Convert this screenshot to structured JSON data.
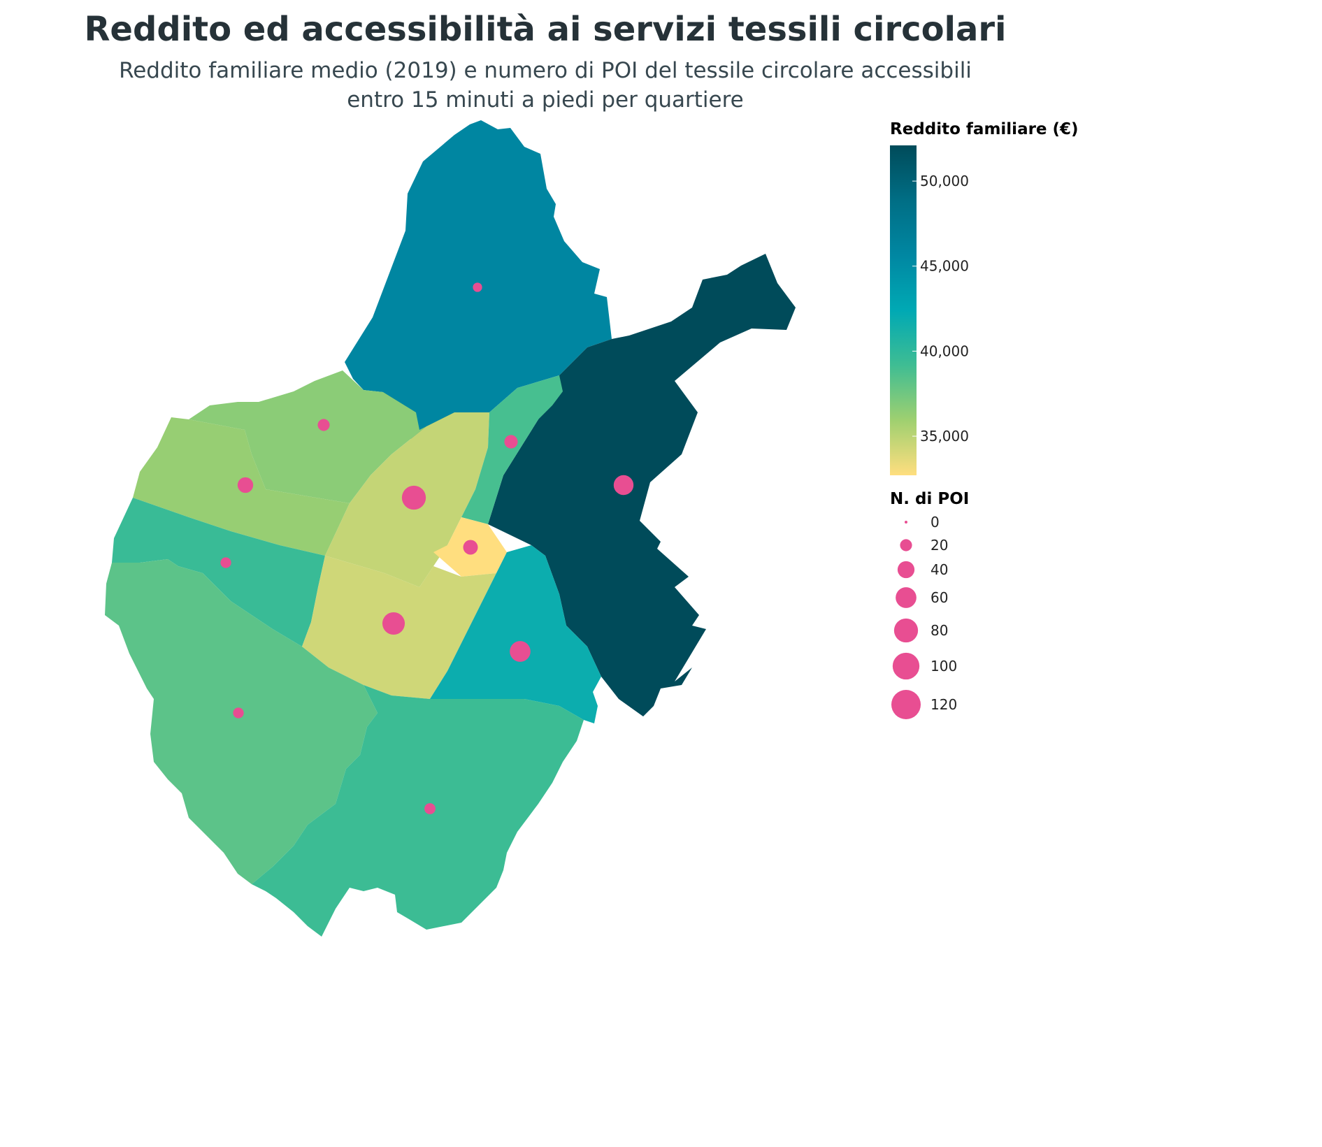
{
  "title": "Reddito ed accessibilità ai servizi tessili circolari",
  "subtitle_lines": [
    "Reddito familiare medio (2019) e numero di POI del tessile circolare accessibili",
    "entro 15 minuti a piedi per quartiere"
  ],
  "colors": {
    "background": "#ffffff",
    "poi_marker": "#e84e92",
    "text": "#263238"
  },
  "legend_income": {
    "title": "Reddito familiare (€)",
    "min": 32700,
    "max": 52100,
    "ticks": [
      {
        "value": 50000,
        "label": "50,000"
      },
      {
        "value": 45000,
        "label": "45,000"
      },
      {
        "value": 40000,
        "label": "40,000"
      },
      {
        "value": 35000,
        "label": "35,000"
      }
    ],
    "color_stops": [
      "#ffde7f",
      "#9fd070",
      "#3fbd93",
      "#00a9b4",
      "#0087a2",
      "#006e85",
      "#004b5a"
    ]
  },
  "legend_poi": {
    "title": "N. di POI",
    "entries": [
      {
        "value": 0,
        "label": "0"
      },
      {
        "value": 20,
        "label": "20"
      },
      {
        "value": 40,
        "label": "40"
      },
      {
        "value": 60,
        "label": "60"
      },
      {
        "value": 80,
        "label": "80"
      },
      {
        "value": 100,
        "label": "100"
      },
      {
        "value": 120,
        "label": "120"
      }
    ]
  },
  "map_data": {
    "neighborhoods": [
      {
        "id": "north",
        "income": 45800,
        "poi": 12
      },
      {
        "id": "east",
        "income": 52100,
        "poi": 55
      },
      {
        "id": "northwest-upper",
        "income": 36600,
        "poi": 20
      },
      {
        "id": "west-upper",
        "income": 36200,
        "poi": 34
      },
      {
        "id": "center-north",
        "income": 34700,
        "poi": 80
      },
      {
        "id": "strip-northeast",
        "income": 38900,
        "poi": 25
      },
      {
        "id": "center",
        "income": 32700,
        "poi": 30
      },
      {
        "id": "west",
        "income": 39500,
        "poi": 16
      },
      {
        "id": "center-south",
        "income": 34300,
        "poi": 70
      },
      {
        "id": "southeast-mid",
        "income": 41800,
        "poi": 60
      },
      {
        "id": "southwest",
        "income": 38200,
        "poi": 16
      },
      {
        "id": "south",
        "income": 39300,
        "poi": 17
      }
    ]
  }
}
